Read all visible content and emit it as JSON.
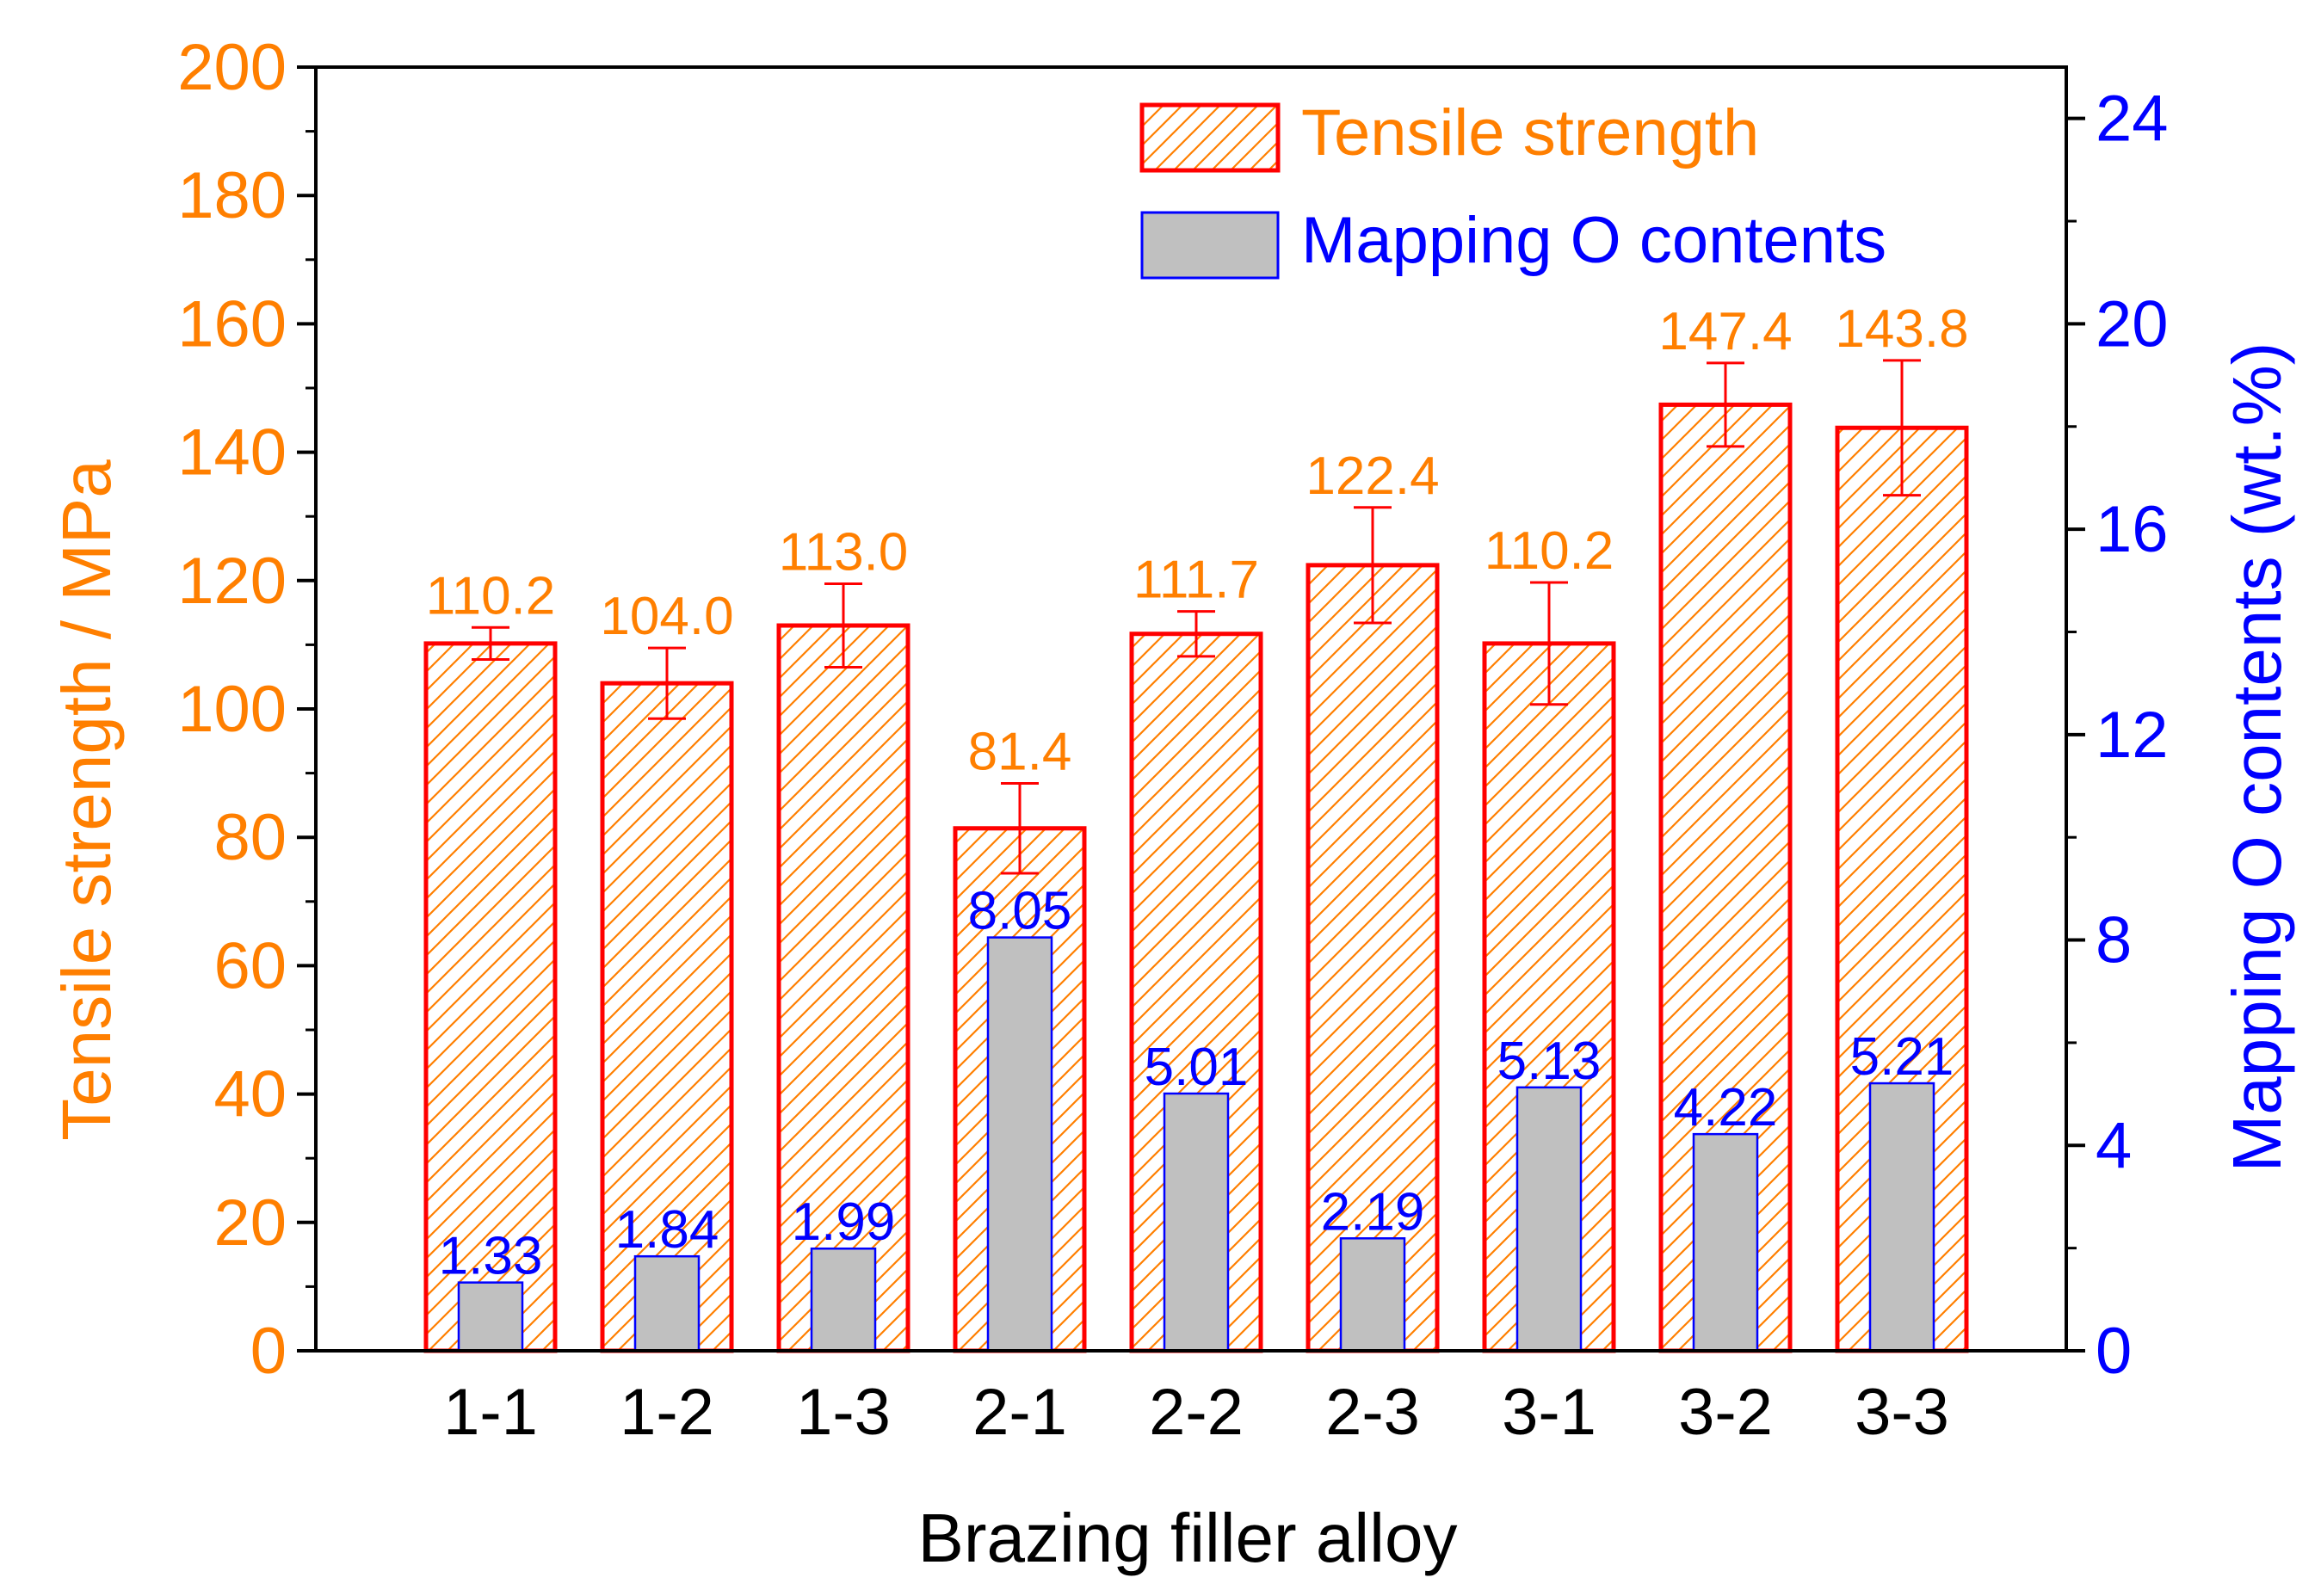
{
  "chart_data": {
    "type": "bar",
    "categories": [
      "1-1",
      "1-2",
      "1-3",
      "2-1",
      "2-2",
      "2-3",
      "3-1",
      "3-2",
      "3-3"
    ],
    "series": [
      {
        "name": "Tensile strength",
        "axis": "left",
        "values": [
          110.2,
          104.0,
          113.0,
          81.4,
          111.7,
          122.4,
          110.2,
          147.4,
          143.8
        ],
        "labels": [
          "110.2",
          "104.0",
          "113.0",
          "81.4",
          "111.7",
          "122.4",
          "110.2",
          "147.4",
          "143.8"
        ],
        "error": [
          2.5,
          5.5,
          6.5,
          7.0,
          3.5,
          9.0,
          9.5,
          6.5,
          10.5
        ],
        "fill": "hatched",
        "edge_color": "#FF0000",
        "hatch_color": "#FF7F00"
      },
      {
        "name": "Mapping O contents",
        "axis": "right",
        "values": [
          1.33,
          1.84,
          1.99,
          8.05,
          5.01,
          2.19,
          5.13,
          4.22,
          5.21
        ],
        "labels": [
          "1.33",
          "1.84",
          "1.99",
          "8.05",
          "5.01",
          "2.19",
          "5.13",
          "4.22",
          "5.21"
        ],
        "fill_color": "#C0C0C0",
        "edge_color": "#0000FF"
      }
    ],
    "xlabel": "Brazing filler alloy",
    "ylabel": "Tensile strength / MPa",
    "y2label": "Mapping O contents (wt.%)",
    "ylim": [
      0,
      200
    ],
    "y2lim": [
      0,
      25
    ],
    "yticks": [
      "0",
      "20",
      "40",
      "60",
      "80",
      "100",
      "120",
      "140",
      "160",
      "180",
      "200"
    ],
    "y2ticks": [
      "0",
      "4",
      "8",
      "12",
      "16",
      "20",
      "24"
    ],
    "legend_position": "top-right",
    "grid": false,
    "colors": {
      "left_axis": "#FF7F00",
      "right_axis": "#0000FF",
      "tensile_label": "#FF7F00",
      "o_label": "#0000FF",
      "error_bar": "#FF0000"
    }
  }
}
